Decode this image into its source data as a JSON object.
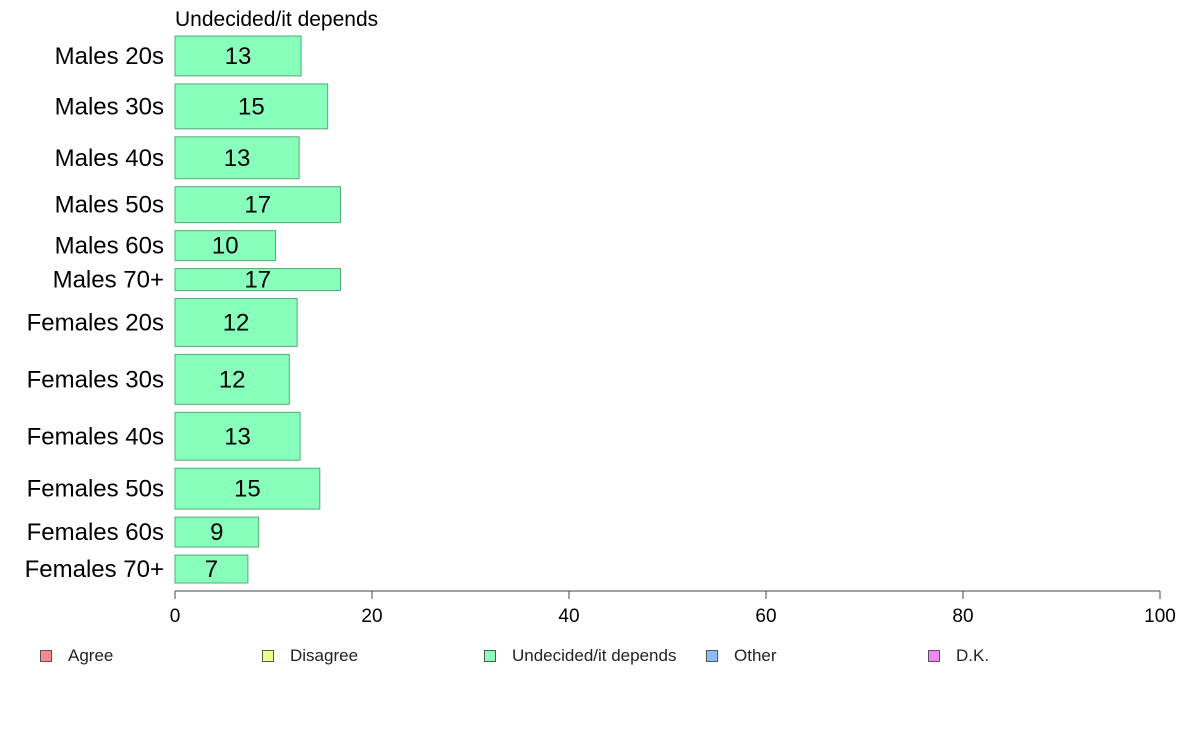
{
  "chart_data": {
    "type": "bar",
    "orientation": "horizontal",
    "title": "Undecided/it depends",
    "categories": [
      "Males 20s",
      "Males 30s",
      "Males 40s",
      "Males 50s",
      "Males 60s",
      "Males 70+",
      "Females 20s",
      "Females 30s",
      "Females 40s",
      "Females 50s",
      "Females 60s",
      "Females 70+"
    ],
    "values": [
      13,
      15,
      13,
      17,
      10,
      17,
      12,
      12,
      13,
      15,
      9,
      7
    ],
    "bar_lengths": [
      12.8,
      15.5,
      12.6,
      16.8,
      10.2,
      16.8,
      12.4,
      11.6,
      12.7,
      14.7,
      8.5,
      7.4
    ],
    "relative_bar_thickness": [
      40,
      45,
      42,
      36,
      30,
      22,
      48,
      50,
      48,
      41,
      30,
      28
    ],
    "xlim": [
      0,
      100
    ],
    "xticks": [
      0,
      20,
      40,
      60,
      80,
      100
    ],
    "bar_color": "#88ffbb",
    "bar_stroke": "#55aa77",
    "legend_position": "bottom",
    "legend": [
      {
        "label": "Agree",
        "color": "#ff8888"
      },
      {
        "label": "Disagree",
        "color": "#eeff88"
      },
      {
        "label": "Undecided/it depends",
        "color": "#88ffbb"
      },
      {
        "label": "Other",
        "color": "#88bbff"
      },
      {
        "label": "D.K.",
        "color": "#ee88ff"
      }
    ]
  }
}
